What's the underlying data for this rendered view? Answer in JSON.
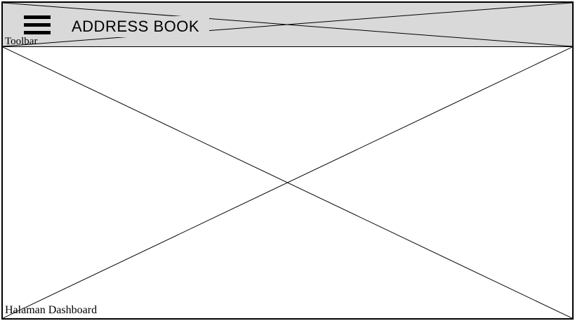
{
  "toolbar": {
    "title": "ADDRESS BOOK",
    "label": "Toolbar",
    "menu_icon": "hamburger-menu-icon",
    "background_color": "#d9d9d9"
  },
  "dashboard": {
    "label": "Halaman Dashboard",
    "background_color": "#ffffff"
  }
}
